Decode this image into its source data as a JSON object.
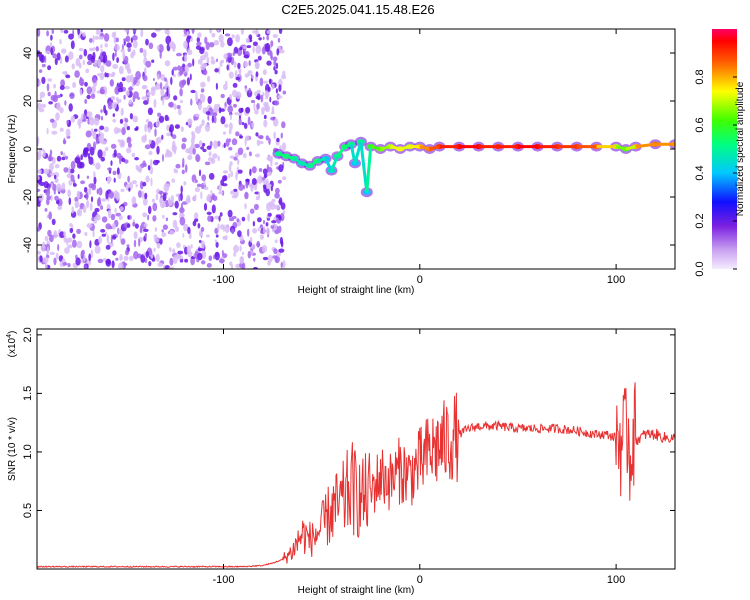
{
  "title": "C2E5.2025.041.15.48.E26",
  "chart_data": [
    {
      "type": "heatmap",
      "xlabel": "Height of straight line (km)",
      "ylabel": "Frequency (Hz)",
      "xlim": [
        -195,
        130
      ],
      "ylim": [
        -50,
        50
      ],
      "xticks": [
        -100,
        0,
        100
      ],
      "xtick_labels": [
        "-100",
        "0",
        "100"
      ],
      "yticks": [
        -40,
        -20,
        0,
        20,
        40
      ],
      "ytick_labels": [
        "-40",
        "-20",
        "0",
        "20",
        "40"
      ],
      "colorbar": {
        "label": "Normalized spectral amplitude",
        "range": [
          0,
          1
        ],
        "ticks": [
          0.0,
          0.2,
          0.4,
          0.6,
          0.8
        ],
        "tick_labels": [
          "0.0",
          "0.2",
          "0.4",
          "0.6",
          "0.8"
        ]
      },
      "noise_region_x": [
        -195,
        -72
      ],
      "trace": [
        {
          "x": -72,
          "y": -2,
          "a": 0.5
        },
        {
          "x": -68,
          "y": -3,
          "a": 0.55
        },
        {
          "x": -64,
          "y": -4,
          "a": 0.5
        },
        {
          "x": -60,
          "y": -6,
          "a": 0.45
        },
        {
          "x": -56,
          "y": -7,
          "a": 0.5
        },
        {
          "x": -52,
          "y": -5,
          "a": 0.55
        },
        {
          "x": -48,
          "y": -4,
          "a": 0.4
        },
        {
          "x": -45,
          "y": -9,
          "a": 0.45
        },
        {
          "x": -42,
          "y": -3,
          "a": 0.5
        },
        {
          "x": -38,
          "y": 1,
          "a": 0.55
        },
        {
          "x": -35,
          "y": 2,
          "a": 0.5
        },
        {
          "x": -33,
          "y": -6,
          "a": 0.4
        },
        {
          "x": -30,
          "y": 3,
          "a": 0.5
        },
        {
          "x": -27,
          "y": -18,
          "a": 0.4
        },
        {
          "x": -25,
          "y": 1,
          "a": 0.6
        },
        {
          "x": -20,
          "y": 0,
          "a": 0.65
        },
        {
          "x": -15,
          "y": 1,
          "a": 0.7
        },
        {
          "x": -10,
          "y": 0,
          "a": 0.75
        },
        {
          "x": -5,
          "y": 1,
          "a": 0.7
        },
        {
          "x": 0,
          "y": 1,
          "a": 0.8
        },
        {
          "x": 5,
          "y": 0,
          "a": 0.85
        },
        {
          "x": 10,
          "y": 1,
          "a": 0.9
        },
        {
          "x": 20,
          "y": 1,
          "a": 0.95
        },
        {
          "x": 30,
          "y": 1,
          "a": 0.95
        },
        {
          "x": 40,
          "y": 1,
          "a": 0.9
        },
        {
          "x": 50,
          "y": 1,
          "a": 0.95
        },
        {
          "x": 60,
          "y": 1,
          "a": 0.95
        },
        {
          "x": 70,
          "y": 1,
          "a": 0.9
        },
        {
          "x": 80,
          "y": 1,
          "a": 0.9
        },
        {
          "x": 90,
          "y": 1,
          "a": 0.85
        },
        {
          "x": 100,
          "y": 1,
          "a": 0.7
        },
        {
          "x": 105,
          "y": 0,
          "a": 0.6
        },
        {
          "x": 110,
          "y": 1,
          "a": 0.8
        },
        {
          "x": 120,
          "y": 2,
          "a": 0.85
        },
        {
          "x": 130,
          "y": 2,
          "a": 0.8
        }
      ]
    },
    {
      "type": "line",
      "xlabel": "Height of straight line (km)",
      "ylabel": "SNR (10 * v/v)",
      "y_multiplier_label": "(x10",
      "y_multiplier_exp": "4",
      "y_multiplier_close": ")",
      "xlim": [
        -195,
        130
      ],
      "ylim": [
        0,
        2.05
      ],
      "xticks": [
        -100,
        0,
        100
      ],
      "xtick_labels": [
        "-100",
        "0",
        "100"
      ],
      "yticks": [
        0.5,
        1.0,
        1.5,
        2.0
      ],
      "ytick_labels": [
        "0.5",
        "1.0",
        "1.5",
        "2.0"
      ],
      "color": "#e83232",
      "series": [
        {
          "x": [
            -195,
            -180,
            -160,
            -140,
            -120,
            -100,
            -90,
            -80,
            -75,
            -70,
            -65,
            -60,
            -55,
            -50,
            -45,
            -40,
            -35,
            -30,
            -25,
            -20,
            -15,
            -10,
            -5,
            0,
            5,
            10,
            15,
            20,
            25,
            30,
            40,
            50,
            60,
            70,
            80,
            90,
            95,
            100,
            103,
            105,
            106,
            107,
            108,
            110,
            115,
            120,
            125,
            130
          ],
          "y": [
            0.02,
            0.02,
            0.02,
            0.02,
            0.02,
            0.02,
            0.02,
            0.03,
            0.05,
            0.08,
            0.15,
            0.3,
            0.25,
            0.35,
            0.5,
            0.55,
            0.7,
            0.6,
            0.65,
            0.8,
            0.75,
            0.85,
            0.8,
            0.9,
            1.0,
            1.05,
            1.1,
            1.15,
            1.2,
            1.22,
            1.22,
            1.2,
            1.2,
            1.2,
            1.18,
            1.15,
            1.15,
            1.12,
            1.1,
            1.05,
            1.3,
            0.9,
            1.2,
            1.1,
            1.15,
            1.15,
            1.12,
            1.12
          ]
        }
      ]
    }
  ]
}
